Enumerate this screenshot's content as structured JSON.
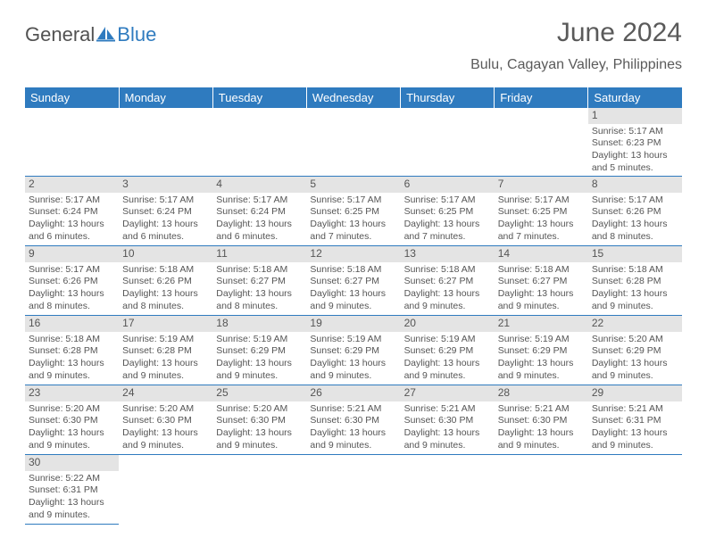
{
  "brand": {
    "part1": "General",
    "part2": "Blue",
    "color1": "#525252",
    "color2": "#2f7bbf"
  },
  "title": "June 2024",
  "location": "Bulu, Cagayan Valley, Philippines",
  "colors": {
    "header_bg": "#2f7bbf",
    "header_fg": "#ffffff",
    "daynum_bg": "#e4e4e4",
    "rule": "#2f7bbf",
    "text": "#555555"
  },
  "weekdays": [
    "Sunday",
    "Monday",
    "Tuesday",
    "Wednesday",
    "Thursday",
    "Friday",
    "Saturday"
  ],
  "first_weekday_index": 6,
  "days": [
    {
      "n": 1,
      "sunrise": "5:17 AM",
      "sunset": "6:23 PM",
      "daylight": "13 hours and 5 minutes."
    },
    {
      "n": 2,
      "sunrise": "5:17 AM",
      "sunset": "6:24 PM",
      "daylight": "13 hours and 6 minutes."
    },
    {
      "n": 3,
      "sunrise": "5:17 AM",
      "sunset": "6:24 PM",
      "daylight": "13 hours and 6 minutes."
    },
    {
      "n": 4,
      "sunrise": "5:17 AM",
      "sunset": "6:24 PM",
      "daylight": "13 hours and 6 minutes."
    },
    {
      "n": 5,
      "sunrise": "5:17 AM",
      "sunset": "6:25 PM",
      "daylight": "13 hours and 7 minutes."
    },
    {
      "n": 6,
      "sunrise": "5:17 AM",
      "sunset": "6:25 PM",
      "daylight": "13 hours and 7 minutes."
    },
    {
      "n": 7,
      "sunrise": "5:17 AM",
      "sunset": "6:25 PM",
      "daylight": "13 hours and 7 minutes."
    },
    {
      "n": 8,
      "sunrise": "5:17 AM",
      "sunset": "6:26 PM",
      "daylight": "13 hours and 8 minutes."
    },
    {
      "n": 9,
      "sunrise": "5:17 AM",
      "sunset": "6:26 PM",
      "daylight": "13 hours and 8 minutes."
    },
    {
      "n": 10,
      "sunrise": "5:18 AM",
      "sunset": "6:26 PM",
      "daylight": "13 hours and 8 minutes."
    },
    {
      "n": 11,
      "sunrise": "5:18 AM",
      "sunset": "6:27 PM",
      "daylight": "13 hours and 8 minutes."
    },
    {
      "n": 12,
      "sunrise": "5:18 AM",
      "sunset": "6:27 PM",
      "daylight": "13 hours and 9 minutes."
    },
    {
      "n": 13,
      "sunrise": "5:18 AM",
      "sunset": "6:27 PM",
      "daylight": "13 hours and 9 minutes."
    },
    {
      "n": 14,
      "sunrise": "5:18 AM",
      "sunset": "6:27 PM",
      "daylight": "13 hours and 9 minutes."
    },
    {
      "n": 15,
      "sunrise": "5:18 AM",
      "sunset": "6:28 PM",
      "daylight": "13 hours and 9 minutes."
    },
    {
      "n": 16,
      "sunrise": "5:18 AM",
      "sunset": "6:28 PM",
      "daylight": "13 hours and 9 minutes."
    },
    {
      "n": 17,
      "sunrise": "5:19 AM",
      "sunset": "6:28 PM",
      "daylight": "13 hours and 9 minutes."
    },
    {
      "n": 18,
      "sunrise": "5:19 AM",
      "sunset": "6:29 PM",
      "daylight": "13 hours and 9 minutes."
    },
    {
      "n": 19,
      "sunrise": "5:19 AM",
      "sunset": "6:29 PM",
      "daylight": "13 hours and 9 minutes."
    },
    {
      "n": 20,
      "sunrise": "5:19 AM",
      "sunset": "6:29 PM",
      "daylight": "13 hours and 9 minutes."
    },
    {
      "n": 21,
      "sunrise": "5:19 AM",
      "sunset": "6:29 PM",
      "daylight": "13 hours and 9 minutes."
    },
    {
      "n": 22,
      "sunrise": "5:20 AM",
      "sunset": "6:29 PM",
      "daylight": "13 hours and 9 minutes."
    },
    {
      "n": 23,
      "sunrise": "5:20 AM",
      "sunset": "6:30 PM",
      "daylight": "13 hours and 9 minutes."
    },
    {
      "n": 24,
      "sunrise": "5:20 AM",
      "sunset": "6:30 PM",
      "daylight": "13 hours and 9 minutes."
    },
    {
      "n": 25,
      "sunrise": "5:20 AM",
      "sunset": "6:30 PM",
      "daylight": "13 hours and 9 minutes."
    },
    {
      "n": 26,
      "sunrise": "5:21 AM",
      "sunset": "6:30 PM",
      "daylight": "13 hours and 9 minutes."
    },
    {
      "n": 27,
      "sunrise": "5:21 AM",
      "sunset": "6:30 PM",
      "daylight": "13 hours and 9 minutes."
    },
    {
      "n": 28,
      "sunrise": "5:21 AM",
      "sunset": "6:30 PM",
      "daylight": "13 hours and 9 minutes."
    },
    {
      "n": 29,
      "sunrise": "5:21 AM",
      "sunset": "6:31 PM",
      "daylight": "13 hours and 9 minutes."
    },
    {
      "n": 30,
      "sunrise": "5:22 AM",
      "sunset": "6:31 PM",
      "daylight": "13 hours and 9 minutes."
    }
  ],
  "labels": {
    "sunrise": "Sunrise:",
    "sunset": "Sunset:",
    "daylight": "Daylight:"
  }
}
